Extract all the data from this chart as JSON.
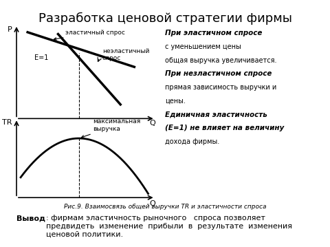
{
  "title": "Разработка ценовой стратегии фирмы",
  "bg_color": "#ffffff",
  "fig_caption": "Рис.9. Взаимосвязь общей выручки TR и эластичности спроса",
  "conclusion_bold": "Вывод",
  "conclusion_text": ": фирмам эластичность рыночного   спроса позволяет\nпредвидеть  изменение  прибыли  в  результате  изменения\nценовой политики.",
  "right_text_lines": [
    {
      "text": "При эластичном спросе",
      "bold": true,
      "italic": true,
      "size": 7.5
    },
    {
      "text": "с уменьшением цены",
      "bold": false,
      "italic": false,
      "size": 7
    },
    {
      "text": "общая выручка увеличивается.",
      "bold": false,
      "italic": false,
      "size": 7
    },
    {
      "text": "При незластичном спросе",
      "bold": true,
      "italic": true,
      "size": 7.5
    },
    {
      "text": "прямая зависимость выручки и",
      "bold": false,
      "italic": false,
      "size": 7
    },
    {
      "text": "цены.",
      "bold": false,
      "italic": false,
      "size": 7
    },
    {
      "text": "Единичная эластичность",
      "bold": true,
      "italic": true,
      "size": 7.5
    },
    {
      "text": "(E=1)",
      "bold": true,
      "italic": true,
      "size": 7.5
    },
    {
      "text": " не влияет на величину",
      "bold": false,
      "italic": false,
      "size": 7
    },
    {
      "text": "дохода фирмы.",
      "bold": false,
      "italic": false,
      "size": 7
    }
  ],
  "elastic_label": "эластичный спрос",
  "inelastic_label": "неэластичный\nспрос",
  "e1_label": "E=1",
  "max_label": "максимальная\nвыручка",
  "p_label": "P",
  "tr_label": "TR",
  "q_label1": "Q",
  "q_label2": "Q"
}
